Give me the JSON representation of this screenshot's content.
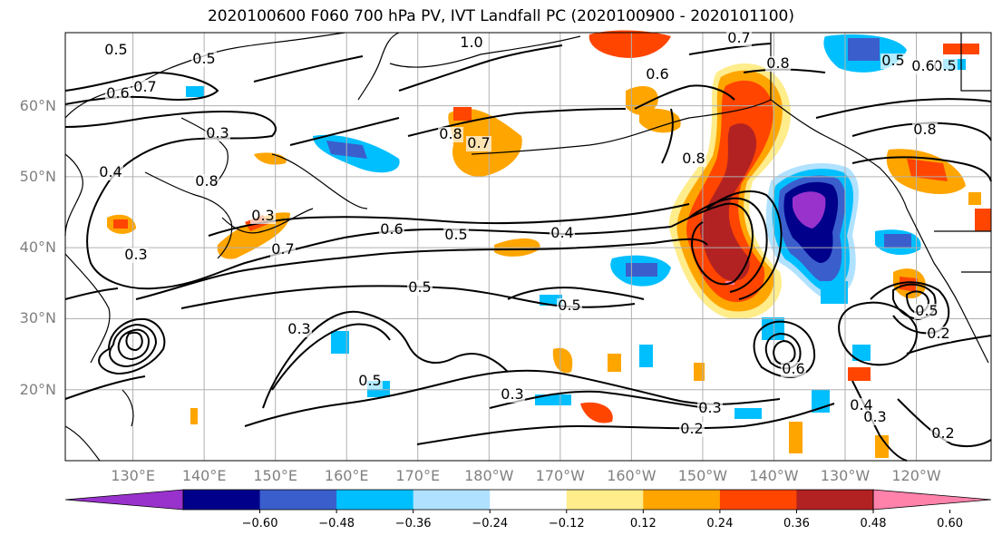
{
  "title": "2020100600 F060 700 hPa PV, IVT Landfall PC (2020100900 - 2020101100)",
  "lat_labels": [
    "60°N",
    "50°N",
    "40°N",
    "30°N",
    "20°N"
  ],
  "lat_values": [
    60,
    50,
    40,
    30,
    20
  ],
  "lon_labels": [
    "130°E",
    "140°E",
    "150°E",
    "160°E",
    "170°E",
    "180°W",
    "170°W",
    "160°W",
    "150°W",
    "140°W",
    "130°W",
    "120°W"
  ],
  "lon_values": [
    130,
    140,
    150,
    160,
    170,
    180,
    190,
    200,
    210,
    220,
    230,
    240
  ],
  "colorbar": {
    "colors": [
      "#9932cc",
      "#00008b",
      "#3a5fcd",
      "#00bfff",
      "#b0e2ff",
      "#ffffff",
      "#ffec8b",
      "#ffa500",
      "#ff4500",
      "#b22222",
      "#ff82ab"
    ],
    "tick_labels": [
      "−0.60",
      "−0.48",
      "−0.36",
      "−0.24",
      "−0.12",
      "0.12",
      "0.24",
      "0.36",
      "0.48",
      "0.60"
    ]
  },
  "contour_labels": [
    "0.5",
    "0.5",
    "0.6",
    "0.7",
    "1.0",
    "0.7",
    "0.8",
    "0.6",
    "0.5",
    "0.3",
    "0.8",
    "0.7",
    "0.4",
    "0.8",
    "0.8",
    "0.3",
    "0.6",
    "0.5",
    "0.4",
    "0.3",
    "0.7",
    "0.5",
    "0.5",
    "0.3",
    "0.5",
    "0.3",
    "0.3",
    "0.2",
    "0.6",
    "0.4",
    "0.3",
    "0.2",
    "0.5",
    "0.2",
    "0.5",
    "0.6",
    "0.8"
  ],
  "colors": {
    "contour": "#000000",
    "grid": "#b0b0b0",
    "coast": "#000000",
    "axis_label": "#808080"
  }
}
